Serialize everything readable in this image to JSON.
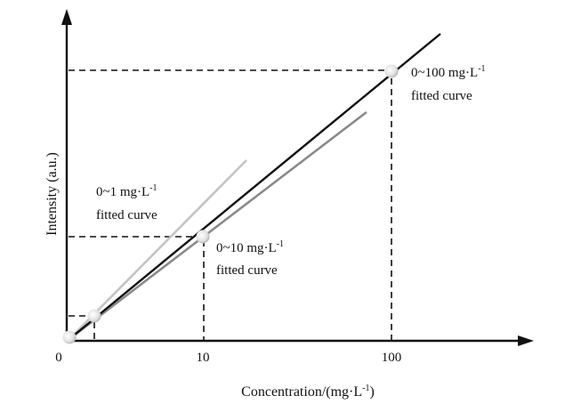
{
  "chart_data": {
    "type": "line",
    "title": "",
    "xlabel": "Concentration/(mg·L",
    "xlabel_sup": "-1",
    "xlabel_close": ")",
    "ylabel": "Intensity (a.u.)",
    "x_scale": "log-like (schematic)",
    "x_ticks": [
      "0",
      "10",
      "100"
    ],
    "grid": false,
    "legend": "none",
    "series": [
      {
        "name": "0~100 mg·L⁻¹ fitted curve",
        "color": "#111111"
      },
      {
        "name": "0~10 mg·L⁻¹ fitted curve",
        "color": "#8a8a8a"
      },
      {
        "name": "0~1 mg·L⁻¹ fitted curve",
        "color": "#c4c4c4"
      }
    ],
    "markers": [
      {
        "x": "0"
      },
      {
        "x": "1"
      },
      {
        "x": "10"
      },
      {
        "x": "100"
      }
    ],
    "annotations": [
      {
        "lines": [
          "0~100 mg·L",
          "fitted curve"
        ],
        "sup": "-1"
      },
      {
        "lines": [
          "0~1 mg·L",
          "fitted curve"
        ],
        "sup": "-1"
      },
      {
        "lines": [
          "0~10 mg·L",
          "fitted curve"
        ],
        "sup": "-1"
      }
    ]
  }
}
